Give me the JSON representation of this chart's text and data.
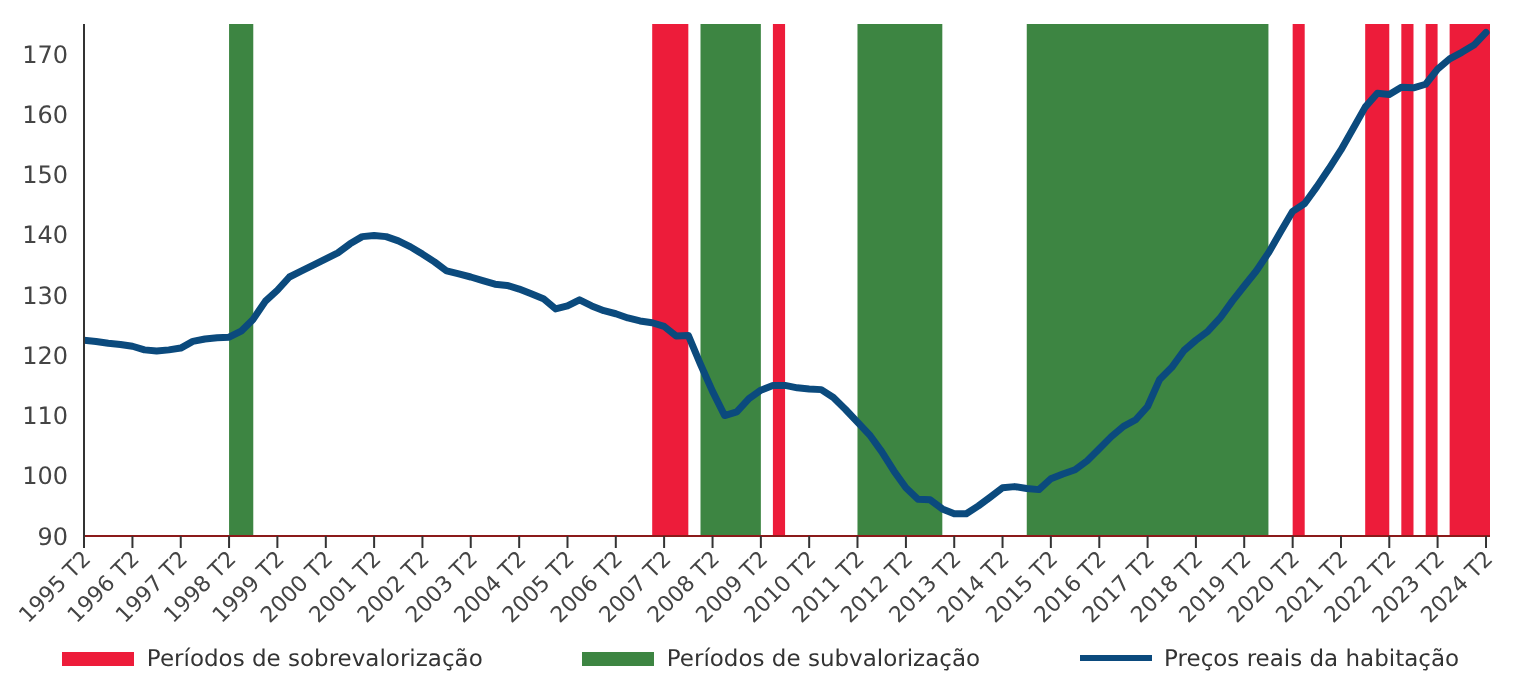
{
  "chart_data": {
    "type": "line",
    "xlim": [
      "1995-04",
      "2024-05"
    ],
    "xticks": [
      {
        "value": "1995-04",
        "label": "1995 T2"
      },
      {
        "value": "1996-04",
        "label": "1996 T2"
      },
      {
        "value": "1997-04",
        "label": "1997 T2"
      },
      {
        "value": "1998-04",
        "label": "1998 T2"
      },
      {
        "value": "1999-04",
        "label": "1999 T2"
      },
      {
        "value": "2000-04",
        "label": "2000 T2"
      },
      {
        "value": "2001-04",
        "label": "2001 T2"
      },
      {
        "value": "2002-04",
        "label": "2002 T2"
      },
      {
        "value": "2003-04",
        "label": "2003 T2"
      },
      {
        "value": "2004-04",
        "label": "2004 T2"
      },
      {
        "value": "2005-04",
        "label": "2005 T2"
      },
      {
        "value": "2006-04",
        "label": "2006 T2"
      },
      {
        "value": "2007-04",
        "label": "2007 T2"
      },
      {
        "value": "2008-04",
        "label": "2008 T2"
      },
      {
        "value": "2009-04",
        "label": "2009 T2"
      },
      {
        "value": "2010-04",
        "label": "2010 T2"
      },
      {
        "value": "2011-04",
        "label": "2011 T2"
      },
      {
        "value": "2012-04",
        "label": "2012 T2"
      },
      {
        "value": "2013-04",
        "label": "2013 T2"
      },
      {
        "value": "2014-04",
        "label": "2014 T2"
      },
      {
        "value": "2015-04",
        "label": "2015 T2"
      },
      {
        "value": "2016-04",
        "label": "2016 T2"
      },
      {
        "value": "2017-04",
        "label": "2017 T2"
      },
      {
        "value": "2018-04",
        "label": "2018 T2"
      },
      {
        "value": "2019-04",
        "label": "2019 T2"
      },
      {
        "value": "2020-04",
        "label": "2020 T2"
      },
      {
        "value": "2021-04",
        "label": "2021 T2"
      },
      {
        "value": "2022-04",
        "label": "2022 T2"
      },
      {
        "value": "2023-04",
        "label": "2023 T2"
      },
      {
        "value": "2024-04",
        "label": "2024 T2"
      }
    ],
    "ylim": [
      90,
      175
    ],
    "yticks": [
      90,
      100,
      110,
      120,
      130,
      140,
      150,
      160,
      170
    ],
    "grid": false,
    "legend": "bottom",
    "bands": [
      {
        "axis": "x",
        "from": "2007-01",
        "to": "2007-10",
        "label": "Períodos de sobrevalorização",
        "color": "#ed1c3a"
      },
      {
        "axis": "x",
        "from": "2009-07",
        "to": "2009-10",
        "color": "#ed1c3a"
      },
      {
        "axis": "x",
        "from": "2020-04",
        "to": "2020-07",
        "color": "#ed1c3a"
      },
      {
        "axis": "x",
        "from": "2021-10",
        "to": "2022-04",
        "color": "#ed1c3a"
      },
      {
        "axis": "x",
        "from": "2022-07",
        "to": "2022-10",
        "color": "#ed1c3a"
      },
      {
        "axis": "x",
        "from": "2023-01",
        "to": "2023-04",
        "color": "#ed1c3a"
      },
      {
        "axis": "x",
        "from": "2023-07",
        "to": "2024-05",
        "color": "#ed1c3a"
      },
      {
        "axis": "x",
        "from": "1998-04",
        "to": "1998-10",
        "label": "Períodos de subvalorização",
        "color": "#3d8542"
      },
      {
        "axis": "x",
        "from": "2008-01",
        "to": "2009-04",
        "color": "#3d8542"
      },
      {
        "axis": "x",
        "from": "2011-04",
        "to": "2013-01",
        "color": "#3d8542"
      },
      {
        "axis": "x",
        "from": "2014-10",
        "to": "2019-10",
        "color": "#3d8542"
      }
    ],
    "series": [
      {
        "name": "Preços reais da habitação",
        "color": "#0b4a7d",
        "x": [
          "1995-04",
          "1995-07",
          "1995-10",
          "1996-01",
          "1996-04",
          "1996-07",
          "1996-10",
          "1997-01",
          "1997-04",
          "1997-07",
          "1997-10",
          "1998-01",
          "1998-04",
          "1998-07",
          "1998-10",
          "1999-01",
          "1999-04",
          "1999-07",
          "1999-10",
          "2000-01",
          "2000-04",
          "2000-07",
          "2000-10",
          "2001-01",
          "2001-04",
          "2001-07",
          "2001-10",
          "2002-01",
          "2002-04",
          "2002-07",
          "2002-10",
          "2003-01",
          "2003-04",
          "2003-07",
          "2003-10",
          "2004-01",
          "2004-04",
          "2004-07",
          "2004-10",
          "2005-01",
          "2005-04",
          "2005-07",
          "2005-10",
          "2006-01",
          "2006-04",
          "2006-07",
          "2006-10",
          "2007-01",
          "2007-04",
          "2007-07",
          "2007-10",
          "2008-01",
          "2008-04",
          "2008-07",
          "2008-10",
          "2009-01",
          "2009-04",
          "2009-07",
          "2009-10",
          "2010-01",
          "2010-04",
          "2010-07",
          "2010-10",
          "2011-01",
          "2011-04",
          "2011-07",
          "2011-10",
          "2012-01",
          "2012-04",
          "2012-07",
          "2012-10",
          "2013-01",
          "2013-04",
          "2013-07",
          "2013-10",
          "2014-01",
          "2014-04",
          "2014-07",
          "2014-10",
          "2015-01",
          "2015-04",
          "2015-07",
          "2015-10",
          "2016-01",
          "2016-04",
          "2016-07",
          "2016-10",
          "2017-01",
          "2017-04",
          "2017-07",
          "2017-10",
          "2018-01",
          "2018-04",
          "2018-07",
          "2018-10",
          "2019-01",
          "2019-04",
          "2019-07",
          "2019-10",
          "2020-01",
          "2020-04",
          "2020-07",
          "2020-10",
          "2021-01",
          "2021-04",
          "2021-07",
          "2021-10",
          "2022-01",
          "2022-04",
          "2022-07",
          "2022-10",
          "2023-01",
          "2023-04",
          "2023-07",
          "2023-10",
          "2024-01",
          "2024-04"
        ],
        "values": [
          122.5,
          122.3,
          122.0,
          121.8,
          121.5,
          120.9,
          120.7,
          120.9,
          121.2,
          122.3,
          122.7,
          122.9,
          123.0,
          124.0,
          126.0,
          129.0,
          130.8,
          133.0,
          134.0,
          135.0,
          136.0,
          137.0,
          138.5,
          139.7,
          139.9,
          139.7,
          139.0,
          138.0,
          136.8,
          135.5,
          134.0,
          133.5,
          133.0,
          132.4,
          131.8,
          131.6,
          131.0,
          130.2,
          129.4,
          127.7,
          128.2,
          129.2,
          128.2,
          127.4,
          126.9,
          126.2,
          125.7,
          125.4,
          124.8,
          123.2,
          123.3,
          118.5,
          114.0,
          110.0,
          110.6,
          112.8,
          114.2,
          115.0,
          115.0,
          114.6,
          114.4,
          114.3,
          113.0,
          111.0,
          108.9,
          106.8,
          104.0,
          100.8,
          98.0,
          96.1,
          96.0,
          94.5,
          93.7,
          93.7,
          95.0,
          96.5,
          98.0,
          98.2,
          97.9,
          97.7,
          99.5,
          100.3,
          101.0,
          102.5,
          104.5,
          106.5,
          108.2,
          109.3,
          111.5,
          116.0,
          118.0,
          120.8,
          122.5,
          124.0,
          126.2,
          129.0,
          131.5,
          134.0,
          137.0,
          140.5,
          143.9,
          145.2,
          148.0,
          151.0,
          154.1,
          157.6,
          161.2,
          163.5,
          163.3,
          164.5,
          164.4,
          165.0,
          167.5,
          169.2,
          170.3,
          171.5,
          173.6
        ]
      }
    ]
  }
}
